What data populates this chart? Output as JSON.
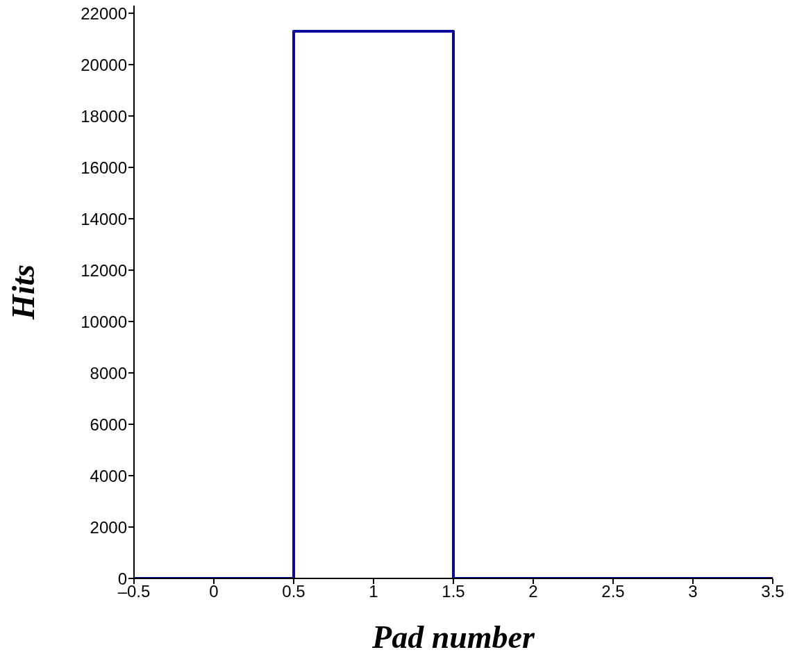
{
  "chart_data": {
    "type": "histogram",
    "xlabel": "Pad number",
    "ylabel": "Hits",
    "bins": [
      -0.5,
      0.5,
      1.5,
      2.5,
      3.5
    ],
    "values": [
      0,
      21300,
      0,
      0
    ],
    "color": "#0a0a9a",
    "xlim": [
      -0.5,
      3.5
    ],
    "xticks": [
      {
        "value": -0.5,
        "label": "–0.5"
      },
      0,
      0.5,
      1,
      1.5,
      2,
      2.5,
      3,
      3.5
    ],
    "ylim": [
      0,
      22300
    ],
    "yticks": [
      0,
      2000,
      4000,
      6000,
      8000,
      10000,
      12000,
      14000,
      16000,
      18000,
      20000,
      22000
    ],
    "grid": false,
    "legend": false
  }
}
